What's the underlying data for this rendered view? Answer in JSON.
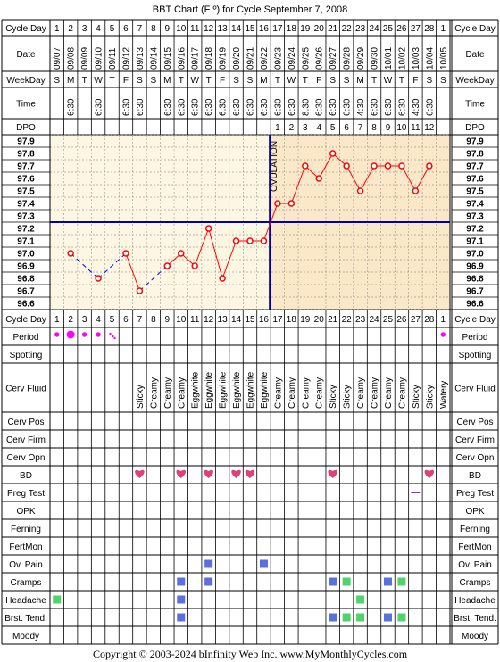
{
  "title": "BBT Chart (F º) for Cycle September 7, 2008",
  "footer": "Copyright © 2003-2024 bInfinity Web Inc.    www.MyMonthlyCycles.com",
  "labels": {
    "cycle_day": "Cycle Day",
    "date": "Date",
    "weekday": "WeekDay",
    "time": "Time",
    "dpo": "DPO",
    "period": "Period",
    "spotting": "Spotting",
    "cerv_fluid": "Cerv Fluid",
    "cerv_pos": "Cerv Pos",
    "cerv_firm": "Cerv Firm",
    "cerv_opn": "Cerv Opn",
    "bd": "BD",
    "preg_test": "Preg Test",
    "opk": "OPK",
    "ferning": "Ferning",
    "fertmon": "FertMon",
    "ov_pain": "Ov. Pain",
    "cramps": "Cramps",
    "headache": "Headache",
    "brst_tend": "Brst. Tend.",
    "moody": "Moody"
  },
  "colors": {
    "grid": "#000000",
    "pre_ovulation_bg": "#fdf6e2",
    "post_ovulation_bg": "#fae8c8",
    "temp_line": "#ff0000",
    "gap_line": "#0000ff",
    "coverline": "#0000aa",
    "ovulation_line": "#0000aa",
    "period_dot": "#ff00ff",
    "symptom_blue": "#5b6fe0",
    "symptom_green": "#4fd36a",
    "heart": "#e0407a",
    "preg_test": "#7b3fa0"
  },
  "chart_data": {
    "type": "line",
    "cycle_days": [
      1,
      2,
      3,
      4,
      5,
      6,
      7,
      8,
      9,
      10,
      11,
      12,
      13,
      14,
      15,
      16,
      17,
      18,
      19,
      20,
      21,
      22,
      23,
      24,
      25,
      26,
      27,
      28,
      1
    ],
    "dates": [
      "09/07",
      "09/08",
      "09/09",
      "09/10",
      "09/11",
      "09/12",
      "09/13",
      "09/14",
      "09/15",
      "09/16",
      "09/17",
      "09/18",
      "09/19",
      "09/20",
      "09/21",
      "09/22",
      "09/23",
      "09/24",
      "09/25",
      "09/26",
      "09/27",
      "09/28",
      "09/29",
      "09/30",
      "10/01",
      "10/02",
      "10/03",
      "10/04",
      "10/05"
    ],
    "weekdays": [
      "S",
      "M",
      "T",
      "W",
      "T",
      "F",
      "S",
      "S",
      "M",
      "T",
      "W",
      "T",
      "F",
      "S",
      "S",
      "M",
      "T",
      "W",
      "T",
      "F",
      "S",
      "S",
      "M",
      "T",
      "W",
      "T",
      "F",
      "S",
      "S"
    ],
    "times": [
      "",
      "6:30",
      "",
      "6:30",
      "",
      "6:30",
      "6:30",
      "",
      "6:30",
      "6:30",
      "6:30",
      "6:30",
      "6:30",
      "6:30",
      "6:30",
      "6:30",
      "6:30",
      "6:30",
      "8:30",
      "6:30",
      "6:30",
      "6:30",
      "4:30",
      "6:30",
      "6:30",
      "6:30",
      "4:30",
      "6:30",
      ""
    ],
    "dpo": [
      "",
      "",
      "",
      "",
      "",
      "",
      "",
      "",
      "",
      "",
      "",
      "",
      "",
      "",
      "",
      "",
      "1",
      "2",
      "3",
      "4",
      "5",
      "6",
      "7",
      "8",
      "9",
      "10",
      "11",
      "12",
      ""
    ],
    "temperatures": [
      null,
      97.0,
      null,
      96.8,
      null,
      97.0,
      96.7,
      null,
      96.9,
      97.0,
      96.9,
      97.2,
      96.8,
      97.1,
      97.1,
      97.1,
      97.4,
      97.4,
      97.7,
      97.6,
      97.8,
      97.7,
      97.5,
      97.7,
      97.7,
      97.7,
      97.5,
      97.7,
      null
    ],
    "y_ticks": [
      "97.9",
      "97.8",
      "97.7",
      "97.6",
      "97.5",
      "97.4",
      "97.3",
      "97.2",
      "97.1",
      "97.0",
      "96.9",
      "96.8",
      "96.7",
      "96.6"
    ],
    "ylim": [
      96.6,
      97.9
    ],
    "coverline": 97.3,
    "ovulation_day": 16,
    "ovulation_label": "OVULATION",
    "period": [
      "heavy",
      "very heavy",
      "heavy",
      "heavy",
      "spotting-light",
      "",
      "",
      "",
      "",
      "",
      "",
      "",
      "",
      "",
      "",
      "",
      "",
      "",
      "",
      "",
      "",
      "",
      "",
      "",
      "",
      "",
      "",
      "",
      "heavy"
    ],
    "cerv_fluid": [
      "",
      "",
      "",
      "",
      "",
      "",
      "Sticky",
      "Creamy",
      "Creamy",
      "Creamy",
      "Eggwhite",
      "Eggwhite",
      "Eggwhite",
      "Eggwhite",
      "Eggwhite",
      "Eggwhite",
      "Creamy",
      "Creamy",
      "Creamy",
      "Creamy",
      "Sticky",
      "Sticky",
      "Creamy",
      "Creamy",
      "Creamy",
      "Creamy",
      "Sticky",
      "Sticky",
      "Watery"
    ],
    "bd_days_index": [
      6,
      9,
      11,
      13,
      14,
      20,
      27
    ],
    "preg_test_index": [
      26
    ],
    "ov_pain_index": [
      11,
      15
    ],
    "cramps": [
      {
        "i": 9,
        "c": "blue"
      },
      {
        "i": 11,
        "c": "blue"
      },
      {
        "i": 20,
        "c": "blue"
      },
      {
        "i": 21,
        "c": "green"
      },
      {
        "i": 24,
        "c": "blue"
      },
      {
        "i": 25,
        "c": "green"
      }
    ],
    "headache": [
      {
        "i": 0,
        "c": "green"
      },
      {
        "i": 9,
        "c": "blue"
      },
      {
        "i": 22,
        "c": "green"
      }
    ],
    "brst_tend": [
      {
        "i": 9,
        "c": "blue"
      },
      {
        "i": 20,
        "c": "blue"
      },
      {
        "i": 21,
        "c": "green"
      },
      {
        "i": 22,
        "c": "green"
      },
      {
        "i": 24,
        "c": "blue"
      },
      {
        "i": 25,
        "c": "green"
      }
    ]
  }
}
